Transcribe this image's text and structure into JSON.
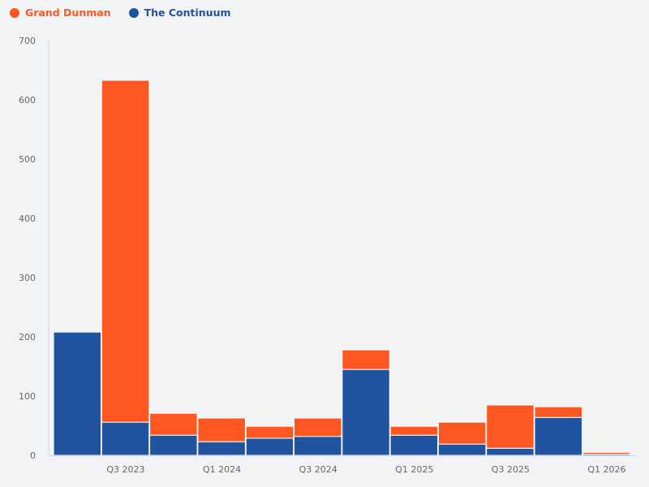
{
  "colors": {
    "grand_dunman": "#ff5722",
    "the_continuum": "#2154a0"
  },
  "chart_data": {
    "type": "bar",
    "stacked": true,
    "title": "",
    "xlabel": "",
    "ylabel": "",
    "ylim": [
      0,
      700
    ],
    "yticks": [
      0,
      100,
      200,
      300,
      400,
      500,
      600,
      700
    ],
    "ytick_labels": [
      "0",
      "100",
      "200",
      "300",
      "400",
      "500",
      "600",
      "700"
    ],
    "categories": [
      "Q2 2023",
      "Q3 2023",
      "Q4 2023",
      "Q1 2024",
      "Q2 2024",
      "Q3 2024",
      "Q4 2024",
      "Q1 2025",
      "Q2 2025",
      "Q3 2025",
      "Q4 2025",
      "Q1 2026"
    ],
    "xtick_labels": [
      "",
      "Q3 2023",
      "",
      "Q1 2024",
      "",
      "Q3 2024",
      "",
      "Q1 2025",
      "",
      "Q3 2025",
      "",
      "Q1 2026"
    ],
    "legend_position": "top-left",
    "series": [
      {
        "name": "The Continuum",
        "color": "#2154a0",
        "values": [
          208,
          56,
          34,
          23,
          29,
          32,
          145,
          34,
          19,
          12,
          64,
          2
        ]
      },
      {
        "name": "Grand Dunman",
        "color": "#ff5722",
        "values": [
          0,
          577,
          37,
          40,
          20,
          31,
          33,
          15,
          37,
          73,
          18,
          3
        ]
      }
    ],
    "legend": [
      "Grand Dunman",
      "The Continuum"
    ]
  }
}
